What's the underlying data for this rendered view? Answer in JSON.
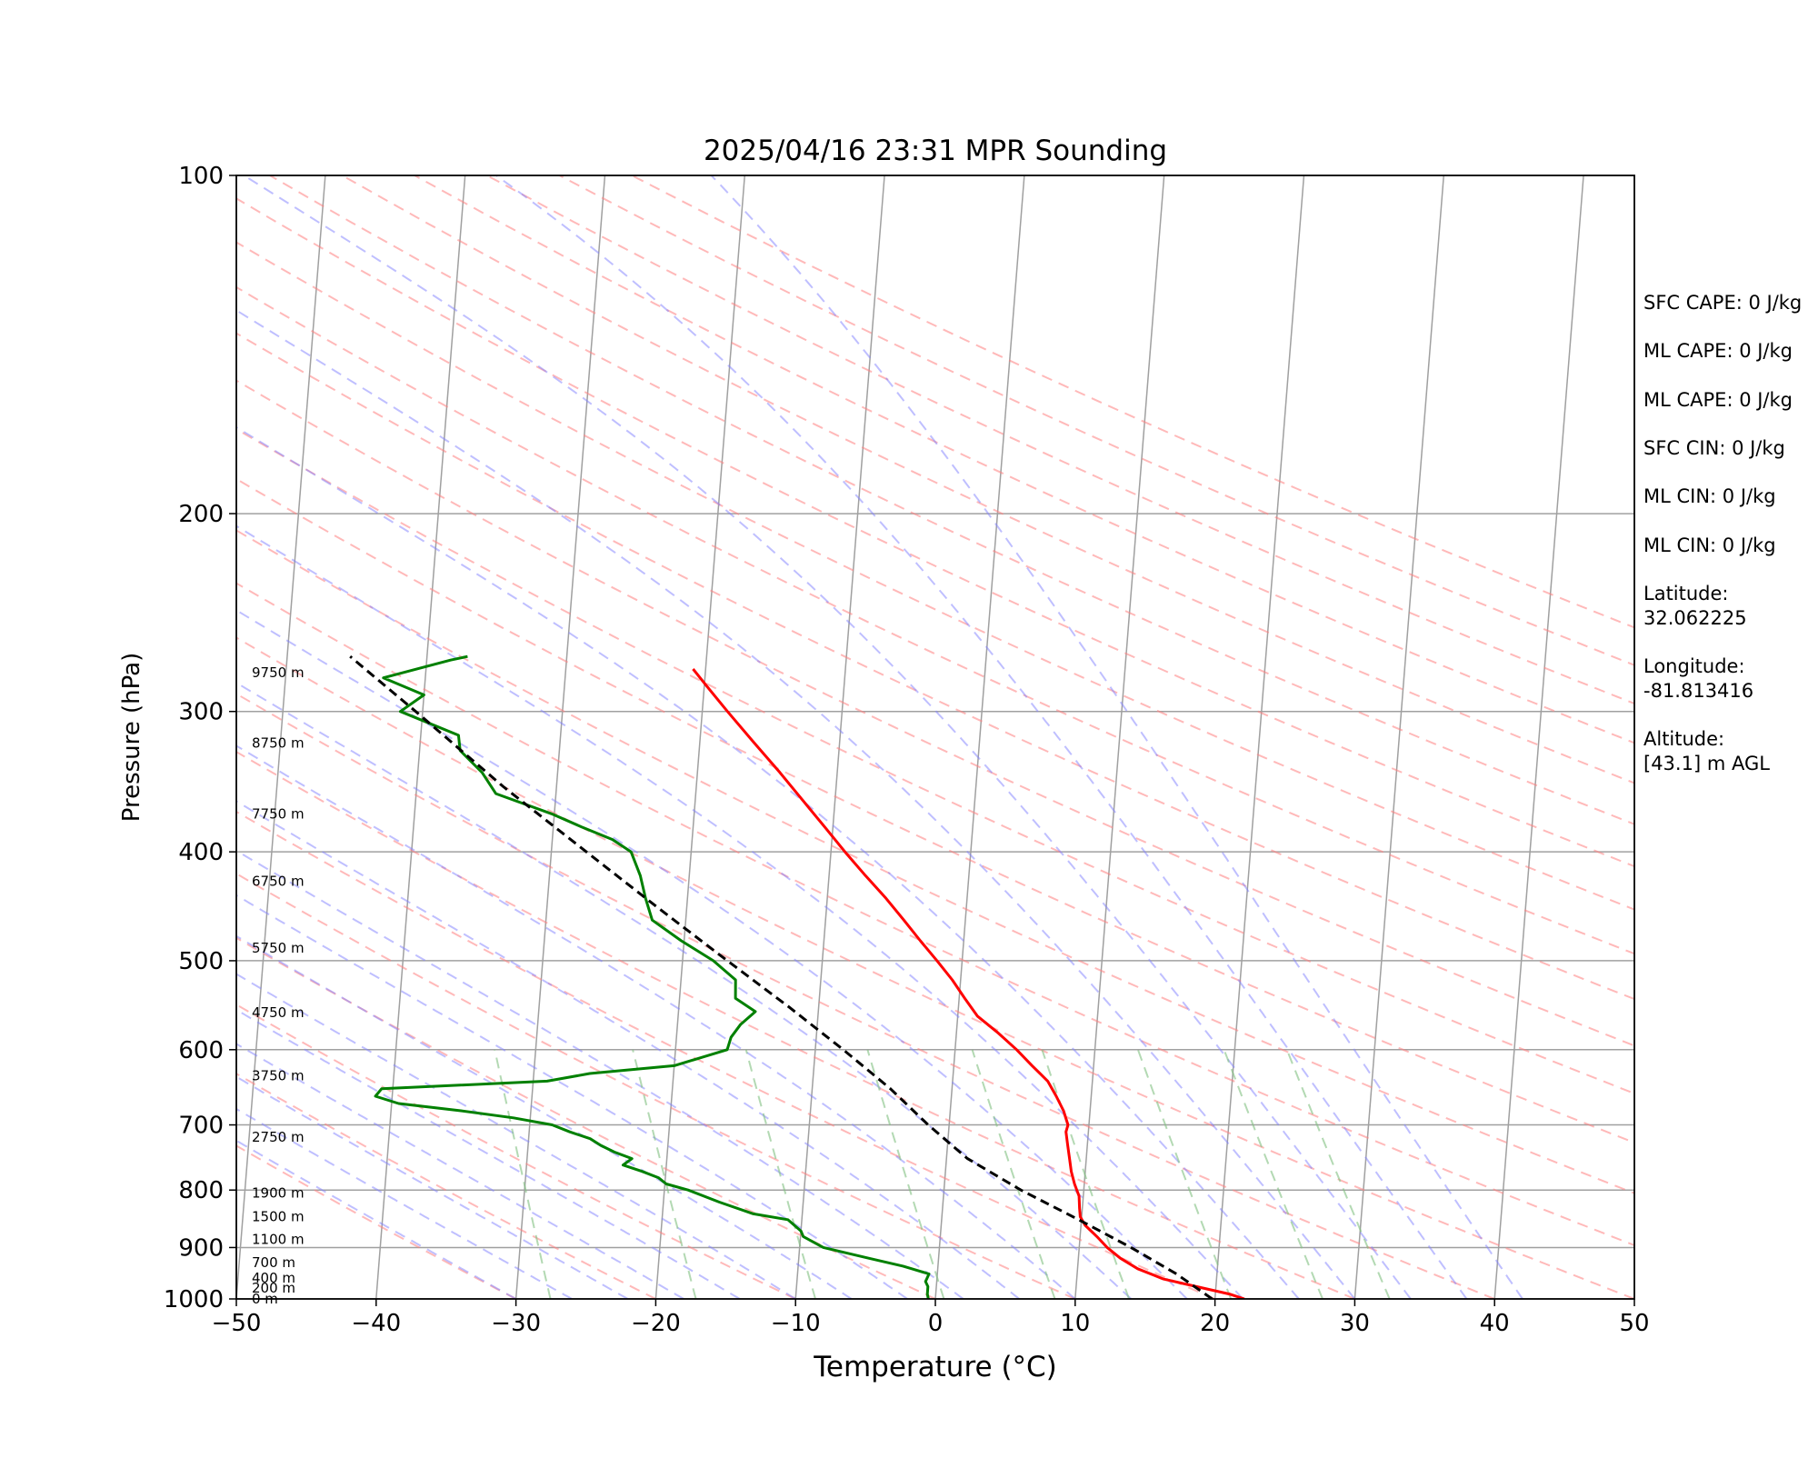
{
  "chart_data": {
    "type": "line",
    "title": "2025/04/16 23:31 MPR Sounding",
    "xlabel": "Temperature (°C)",
    "ylabel": "Pressure (hPa)",
    "xlim": [
      -50,
      50
    ],
    "ylim": [
      1000,
      100
    ],
    "y_scale": "log",
    "x_ticks": [
      "−50",
      "−40",
      "−30",
      "−20",
      "−10",
      "0",
      "10",
      "20",
      "30",
      "40",
      "50"
    ],
    "y_ticks": [
      "100",
      "200",
      "300",
      "400",
      "500",
      "600",
      "700",
      "800",
      "900",
      "1000"
    ],
    "grid": true,
    "series": [
      {
        "kind": "temperature",
        "color": "#ff0000",
        "points": [
          [
            1000,
            22.1
          ],
          [
            990,
            21.0
          ],
          [
            975,
            18.6
          ],
          [
            960,
            16.2
          ],
          [
            940,
            14.3
          ],
          [
            920,
            13.0
          ],
          [
            900,
            12.0
          ],
          [
            880,
            11.2
          ],
          [
            860,
            10.3
          ],
          [
            845,
            9.9
          ],
          [
            830,
            9.8
          ],
          [
            810,
            9.7
          ],
          [
            790,
            9.3
          ],
          [
            770,
            9.0
          ],
          [
            750,
            8.8
          ],
          [
            730,
            8.6
          ],
          [
            710,
            8.4
          ],
          [
            700,
            8.5
          ],
          [
            680,
            8.1
          ],
          [
            660,
            7.5
          ],
          [
            640,
            6.8
          ],
          [
            620,
            5.6
          ],
          [
            600,
            4.4
          ],
          [
            580,
            3.0
          ],
          [
            560,
            1.4
          ],
          [
            540,
            0.4
          ],
          [
            520,
            -0.6
          ],
          [
            500,
            -1.8
          ],
          [
            480,
            -3.1
          ],
          [
            460,
            -4.4
          ],
          [
            440,
            -5.8
          ],
          [
            420,
            -7.4
          ],
          [
            400,
            -9.0
          ],
          [
            380,
            -10.6
          ],
          [
            360,
            -12.3
          ],
          [
            340,
            -14.1
          ],
          [
            320,
            -16.1
          ],
          [
            300,
            -18.2
          ],
          [
            285,
            -19.8
          ],
          [
            275,
            -20.9
          ]
        ]
      },
      {
        "kind": "dewpoint",
        "color": "#008000",
        "points": [
          [
            1000,
            -0.5
          ],
          [
            990,
            -0.6
          ],
          [
            975,
            -0.6
          ],
          [
            965,
            -0.8
          ],
          [
            950,
            -0.6
          ],
          [
            935,
            -2.5
          ],
          [
            920,
            -5.0
          ],
          [
            900,
            -8.3
          ],
          [
            880,
            -9.8
          ],
          [
            870,
            -10.0
          ],
          [
            860,
            -10.5
          ],
          [
            850,
            -11.0
          ],
          [
            840,
            -13.5
          ],
          [
            820,
            -16.0
          ],
          [
            800,
            -18.3
          ],
          [
            790,
            -19.9
          ],
          [
            780,
            -20.5
          ],
          [
            770,
            -21.7
          ],
          [
            760,
            -23.1
          ],
          [
            750,
            -22.5
          ],
          [
            740,
            -23.8
          ],
          [
            730,
            -24.8
          ],
          [
            720,
            -25.6
          ],
          [
            710,
            -27.1
          ],
          [
            700,
            -28.4
          ],
          [
            690,
            -31.2
          ],
          [
            680,
            -35.0
          ],
          [
            670,
            -39.5
          ],
          [
            660,
            -41.2
          ],
          [
            650,
            -40.8
          ],
          [
            640,
            -29.0
          ],
          [
            630,
            -26.0
          ],
          [
            620,
            -20.0
          ],
          [
            600,
            -16.3
          ],
          [
            585,
            -16.1
          ],
          [
            570,
            -15.5
          ],
          [
            555,
            -14.5
          ],
          [
            540,
            -16.0
          ],
          [
            520,
            -16.1
          ],
          [
            500,
            -17.8
          ],
          [
            480,
            -20.2
          ],
          [
            460,
            -22.4
          ],
          [
            440,
            -23.0
          ],
          [
            420,
            -23.5
          ],
          [
            400,
            -24.3
          ],
          [
            390,
            -25.7
          ],
          [
            380,
            -28.0
          ],
          [
            370,
            -30.2
          ],
          [
            355,
            -34.3
          ],
          [
            340,
            -35.4
          ],
          [
            325,
            -37.1
          ],
          [
            315,
            -37.3
          ],
          [
            300,
            -41.6
          ],
          [
            290,
            -40.0
          ],
          [
            280,
            -43.0
          ],
          [
            270,
            -38.3
          ],
          [
            268,
            -37.1
          ]
        ]
      },
      {
        "kind": "parcel",
        "color": "#000000",
        "points": [
          [
            1000,
            19.8
          ],
          [
            950,
            17.1
          ],
          [
            900,
            13.7
          ],
          [
            850,
            9.8
          ],
          [
            800,
            5.5
          ],
          [
            750,
            1.5
          ],
          [
            700,
            -1.5
          ],
          [
            650,
            -4.4
          ],
          [
            600,
            -8.0
          ],
          [
            550,
            -12.1
          ],
          [
            500,
            -16.8
          ],
          [
            450,
            -21.9
          ],
          [
            400,
            -27.5
          ],
          [
            350,
            -33.8
          ],
          [
            300,
            -40.5
          ],
          [
            268,
            -45.5
          ]
        ]
      }
    ],
    "height_labels": [
      {
        "p": 1000,
        "label": "0 m"
      },
      {
        "p": 978,
        "label": "200 m"
      },
      {
        "p": 958,
        "label": "400 m"
      },
      {
        "p": 928,
        "label": "700 m"
      },
      {
        "p": 885,
        "label": "1100 m"
      },
      {
        "p": 845,
        "label": "1500 m"
      },
      {
        "p": 805,
        "label": "1900 m"
      },
      {
        "p": 718,
        "label": "2750 m"
      },
      {
        "p": 633,
        "label": "3750 m"
      },
      {
        "p": 556,
        "label": "4750 m"
      },
      {
        "p": 487,
        "label": "5750 m"
      },
      {
        "p": 425,
        "label": "6750 m"
      },
      {
        "p": 370,
        "label": "7750 m"
      },
      {
        "p": 320,
        "label": "8750 m"
      },
      {
        "p": 277,
        "label": "9750 m"
      }
    ],
    "annotations": [
      "SFC CAPE: 0 J/kg",
      "ML CAPE: 0 J/kg",
      "ML CAPE: 0 J/kg",
      "SFC CIN: 0 J/kg",
      "ML CIN: 0 J/kg",
      "ML CIN: 0 J/kg",
      "Latitude:",
      "32.062225",
      "Longitude:",
      "-81.813416",
      "Altitude:",
      "[43.1] m AGL"
    ],
    "style": {
      "isotherm_color": "#a0a0a0",
      "isobar_color": "#a0a0a0",
      "dry_adiabat_color": "#ff8080",
      "moist_adiabat_color": "#8080ff",
      "mixing_ratio_color": "#80c080"
    }
  }
}
